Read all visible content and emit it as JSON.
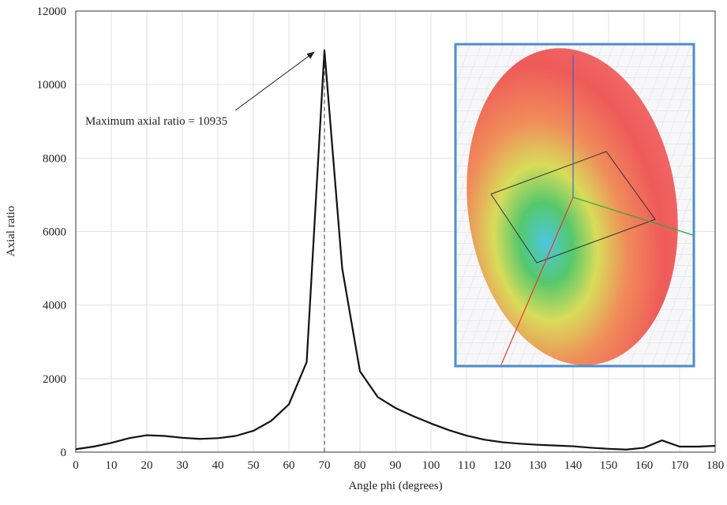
{
  "chart_data": {
    "type": "line",
    "x_label": "Angle phi (degrees)",
    "y_label": "Axial ratio",
    "annotation": "Maximum axial ratio = 10935",
    "x": [
      0,
      5,
      10,
      15,
      20,
      25,
      30,
      35,
      40,
      45,
      50,
      55,
      60,
      65,
      70,
      75,
      80,
      85,
      90,
      95,
      100,
      105,
      110,
      115,
      120,
      125,
      130,
      135,
      140,
      145,
      150,
      155,
      160,
      165,
      170,
      175,
      180
    ],
    "values": [
      80,
      150,
      250,
      380,
      460,
      440,
      390,
      360,
      380,
      440,
      580,
      850,
      1300,
      2450,
      10935,
      5000,
      2200,
      1500,
      1200,
      980,
      780,
      600,
      450,
      340,
      270,
      230,
      200,
      180,
      160,
      120,
      90,
      70,
      120,
      320,
      150,
      150,
      170
    ],
    "color": "#111111",
    "xlim": [
      0,
      180
    ],
    "xticks": [
      0,
      10,
      20,
      30,
      40,
      50,
      60,
      70,
      80,
      90,
      100,
      110,
      120,
      130,
      140,
      150,
      160,
      170,
      180
    ],
    "ylim": [
      0,
      12000
    ],
    "yticks": [
      0,
      2000,
      4000,
      6000,
      8000,
      10000,
      12000
    ],
    "grid": true
  }
}
